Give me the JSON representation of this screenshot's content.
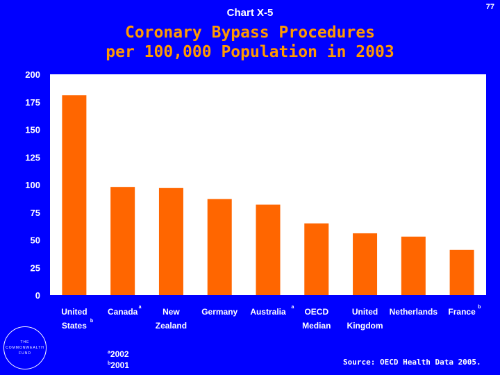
{
  "header": {
    "chart_label": "Chart X-5",
    "page_number": "77",
    "title_line1": "Coronary Bypass Procedures",
    "title_line2": "per 100,000 Population in 2003"
  },
  "chart_data": {
    "type": "bar",
    "title": "Coronary Bypass Procedures per 100,000 Population in 2003",
    "categories": [
      [
        "United",
        "States"
      ],
      [
        "Canada"
      ],
      [
        "New",
        "Zealand"
      ],
      [
        "Germany"
      ],
      [
        "Australia"
      ],
      [
        "OECD",
        "Median"
      ],
      [
        "United",
        "Kingdom"
      ],
      [
        "Netherlands"
      ],
      [
        "France"
      ]
    ],
    "category_notes": [
      "b",
      "a",
      "",
      "",
      "a",
      "",
      "",
      "",
      "b"
    ],
    "values": [
      181,
      98,
      97,
      87,
      82,
      65,
      56,
      53,
      41
    ],
    "ylim": [
      0,
      200
    ],
    "yticks": [
      0,
      25,
      50,
      75,
      100,
      125,
      150,
      175,
      200
    ],
    "xlabel": "",
    "ylabel": "",
    "grid": false,
    "colors": {
      "bar": "#FF6600",
      "plot_background": "#FFFFFF",
      "page_background": "#0000FF",
      "text": "#FFFFFF",
      "title": "#FF9900"
    }
  },
  "footnotes": {
    "a_marker": "a",
    "a_text": "2002",
    "b_marker": "b",
    "b_text": "2001"
  },
  "logo": {
    "line1": "THE",
    "line2": "COMMONWEALTH",
    "line3": "FUND"
  },
  "source": "Source: OECD Health Data 2005."
}
